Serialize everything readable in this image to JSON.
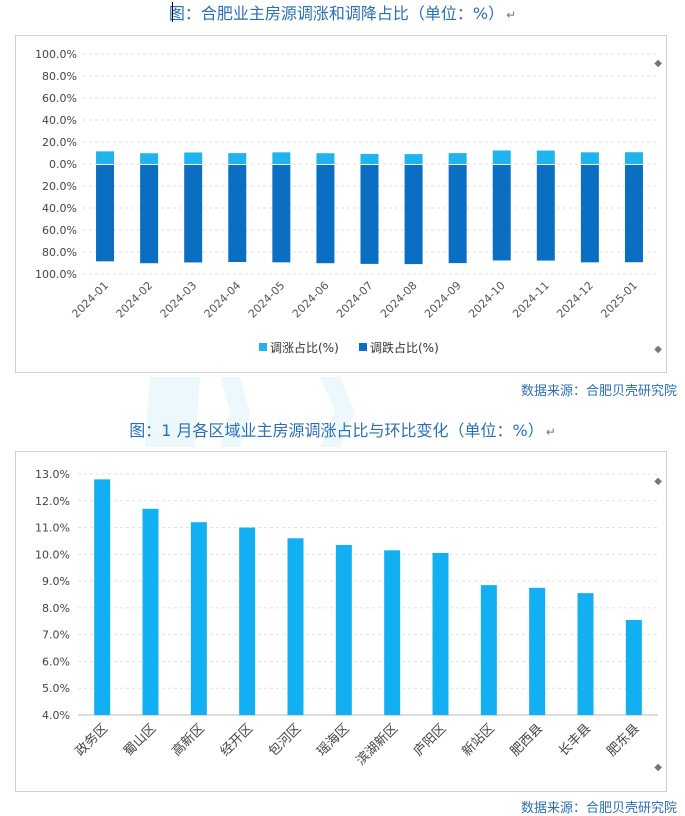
{
  "chart1_title": "图：合肥业主房源调涨和调降占比（单位：%）",
  "chart2_title": "图：1 月各区域业主房源调涨占比与环比变化（单位：%）",
  "return_mark": "↵",
  "source1": "数据来源：合肥贝壳研究院",
  "source2": "数据来源：合肥贝壳研究院",
  "colors": {
    "rise": "#1fb3f0",
    "fall": "#0a6fc2",
    "bar2": "#12b0f2",
    "title": "#2a6fb5"
  },
  "chart_data": [
    {
      "type": "bar",
      "stacked": true,
      "categories": [
        "2024-01",
        "2024-02",
        "2024-03",
        "2024-04",
        "2024-05",
        "2024-06",
        "2024-07",
        "2024-08",
        "2024-09",
        "2024-10",
        "2024-11",
        "2024-12",
        "2025-01"
      ],
      "series": [
        {
          "name": "调涨占比(%)",
          "values": [
            11.5,
            9.8,
            10.5,
            9.9,
            10.6,
            9.8,
            9.2,
            9.0,
            9.9,
            12.3,
            12.2,
            10.6,
            10.7
          ]
        },
        {
          "name": "调跌占比(%)",
          "values": [
            88.5,
            90.2,
            89.5,
            89.1,
            89.4,
            90.2,
            90.8,
            91.0,
            90.1,
            87.7,
            87.8,
            89.4,
            89.3
          ]
        }
      ],
      "yticks": [
        "100.0%",
        "80.0%",
        "60.0%",
        "40.0%",
        "20.0%",
        "0.0%",
        "20.0%",
        "40.0%",
        "60.0%",
        "80.0%",
        "100.0%"
      ],
      "ylim": [
        -100,
        100
      ],
      "grid": true,
      "legend": "bottom"
    },
    {
      "type": "bar",
      "categories": [
        "政务区",
        "蜀山区",
        "高新区",
        "经开区",
        "包河区",
        "瑶海区",
        "滨湖新区",
        "庐阳区",
        "新站区",
        "肥西县",
        "长丰县",
        "肥东县"
      ],
      "values": [
        12.8,
        11.7,
        11.2,
        11.0,
        10.6,
        10.35,
        10.15,
        10.05,
        8.85,
        8.75,
        8.55,
        7.55
      ],
      "yticks": [
        "13.0%",
        "12.0%",
        "11.0%",
        "10.0%",
        "9.0%",
        "8.0%",
        "7.0%",
        "6.0%",
        "5.0%",
        "4.0%"
      ],
      "ylim": [
        4,
        13
      ],
      "grid": true
    }
  ]
}
